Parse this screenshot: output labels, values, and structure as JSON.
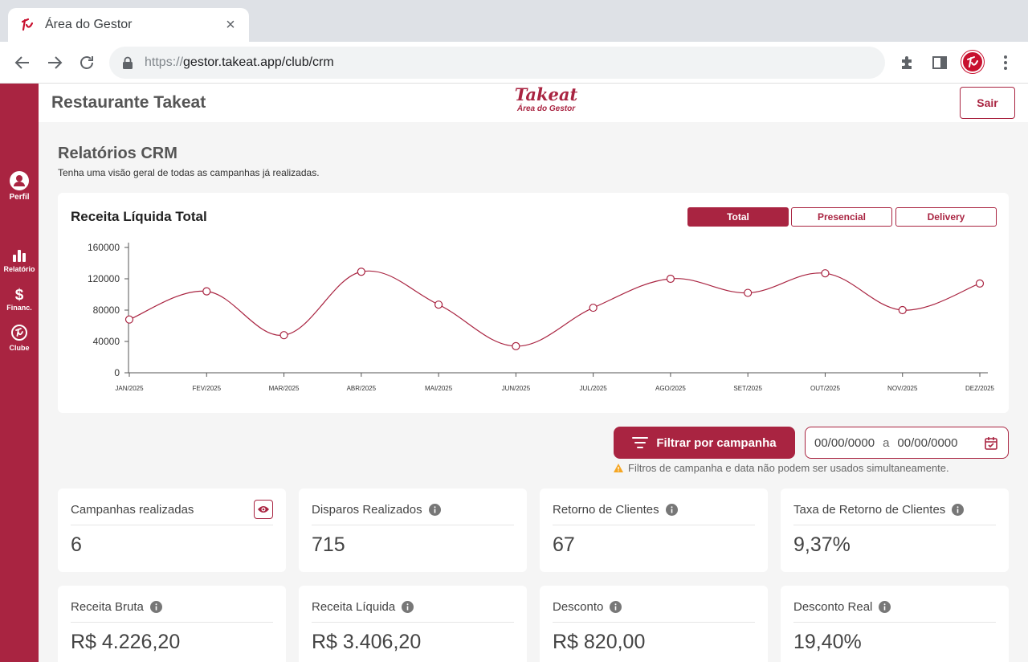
{
  "browser": {
    "tab_title": "Área do Gestor",
    "url_scheme": "https://",
    "url_rest": "gestor.takeat.app/club/crm"
  },
  "header": {
    "restaurant": "Restaurante Takeat",
    "logo_line1": "Takeat",
    "logo_line2": "Área do Gestor",
    "logout_label": "Sair"
  },
  "sidebar": {
    "items": [
      {
        "label": "Perfil",
        "icon": "user-icon"
      },
      {
        "label": "Relatório",
        "icon": "bar-chart-icon"
      },
      {
        "label": "Financ.",
        "icon": "dollar-icon"
      },
      {
        "label": "Clube",
        "icon": "club-icon"
      }
    ]
  },
  "page": {
    "title": "Relatórios CRM",
    "subtitle": "Tenha uma visão geral de todas as campanhas já realizadas."
  },
  "chart_card": {
    "title": "Receita Líquida Total",
    "segments": [
      "Total",
      "Presencial",
      "Delivery"
    ],
    "active_segment": "Total"
  },
  "chart_data": {
    "type": "line",
    "categories": [
      "JAN/2025",
      "FEV/2025",
      "MAR/2025",
      "ABR/2025",
      "MAI/2025",
      "JUN/2025",
      "JUL/2025",
      "AGO/2025",
      "SET/2025",
      "OUT/2025",
      "NOV/2025",
      "DEZ/2025"
    ],
    "values": [
      68000,
      104000,
      48000,
      129000,
      87000,
      34000,
      83000,
      120000,
      102000,
      127000,
      80000,
      114000
    ],
    "ylim": [
      0,
      160000
    ],
    "yticks": [
      0,
      40000,
      80000,
      120000,
      160000
    ],
    "grid": false,
    "color": "#a92441"
  },
  "filters": {
    "campaign_button": "Filtrar por campanha",
    "date_from": "00/00/0000",
    "date_sep": "a",
    "date_to": "00/00/0000",
    "warning": "Filtros de campanha e data não podem ser usados simultaneamente."
  },
  "kpis": [
    {
      "label": "Campanhas realizadas",
      "value": "6",
      "icon": "eye-icon"
    },
    {
      "label": "Disparos Realizados",
      "value": "715",
      "icon": "info-icon"
    },
    {
      "label": "Retorno de Clientes",
      "value": "67",
      "icon": "info-icon"
    },
    {
      "label": "Taxa de Retorno de Clientes",
      "value": "9,37%",
      "icon": "info-icon"
    },
    {
      "label": "Receita Bruta",
      "value": "R$ 4.226,20",
      "icon": "info-icon"
    },
    {
      "label": "Receita Líquida",
      "value": "R$ 3.406,20",
      "icon": "info-icon"
    },
    {
      "label": "Desconto",
      "value": "R$ 820,00",
      "icon": "info-icon"
    },
    {
      "label": "Desconto Real",
      "value": "19,40%",
      "icon": "info-icon"
    }
  ]
}
